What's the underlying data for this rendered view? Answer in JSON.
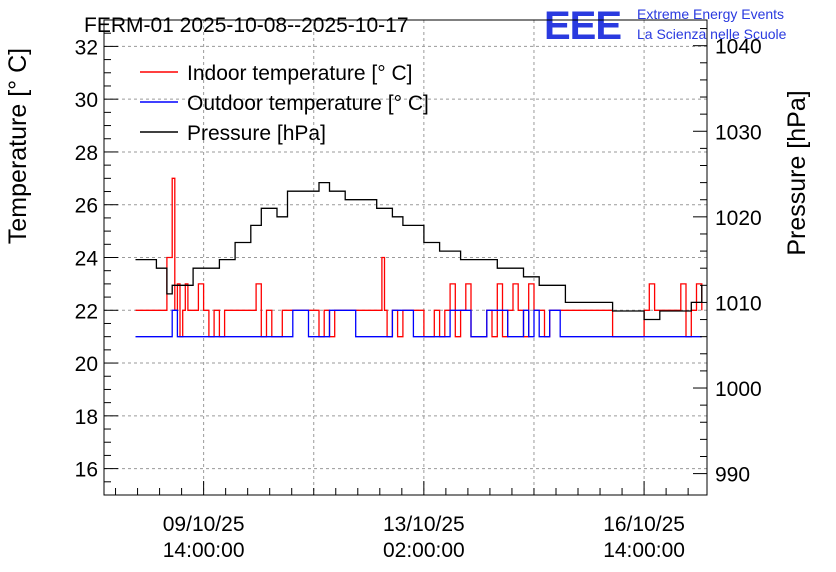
{
  "title": "FERM-01 2025-10-08--2025-10-17",
  "logo": {
    "mark": "EEE",
    "line1": "Extreme Energy Events",
    "line2": "La Scienza nelle Scuole"
  },
  "chart_data": {
    "type": "line",
    "ylabel_left": "Temperature [° C]",
    "ylabel_right": "Pressure [hPa]",
    "ylim_left": [
      15,
      33
    ],
    "ylim_right": [
      987.5,
      1043
    ],
    "yticks_left": [
      "16",
      "18",
      "20",
      "22",
      "24",
      "26",
      "28",
      "30",
      "32"
    ],
    "yticks_right": [
      "990",
      "1000",
      "1010",
      "1020",
      "1030",
      "1040"
    ],
    "xlim": [
      "2025-10-08T00:00",
      "2025-10-17T14:00"
    ],
    "xticks": [
      {
        "date": "09/10/25",
        "time": "14:00:00",
        "x": "2025-10-09T14:00"
      },
      {
        "date": "13/10/25",
        "time": "02:00:00",
        "x": "2025-10-13T02:00"
      },
      {
        "date": "16/10/25",
        "time": "14:00:00",
        "x": "2025-10-16T14:00"
      }
    ],
    "grid": true,
    "legend_position": "top-left",
    "series": [
      {
        "name": "Indoor temperature [° C]",
        "axis": "left",
        "color": "#ff0000",
        "x": [
          "2025-10-08T12:00",
          "2025-10-08T22:00",
          "2025-10-09T00:00",
          "2025-10-09T02:00",
          "2025-10-09T03:00",
          "2025-10-09T04:00",
          "2025-10-09T05:00",
          "2025-10-09T06:00",
          "2025-10-09T07:00",
          "2025-10-09T08:00",
          "2025-10-09T09:00",
          "2025-10-09T10:00",
          "2025-10-09T12:00",
          "2025-10-09T14:00",
          "2025-10-09T16:00",
          "2025-10-09T18:00",
          "2025-10-09T20:00",
          "2025-10-09T22:00",
          "2025-10-10T00:00",
          "2025-10-10T04:00",
          "2025-10-10T08:00",
          "2025-10-10T10:00",
          "2025-10-10T12:00",
          "2025-10-10T14:00",
          "2025-10-10T16:00",
          "2025-10-10T20:00",
          "2025-10-11T06:00",
          "2025-10-11T08:00",
          "2025-10-11T10:00",
          "2025-10-11T12:00",
          "2025-10-11T14:00",
          "2025-10-11T16:00",
          "2025-10-12T02:00",
          "2025-10-12T08:00",
          "2025-10-12T10:00",
          "2025-10-12T11:00",
          "2025-10-12T12:00",
          "2025-10-12T14:00",
          "2025-10-12T16:00",
          "2025-10-12T18:00",
          "2025-10-12T22:00",
          "2025-10-13T02:00",
          "2025-10-13T06:00",
          "2025-10-13T08:00",
          "2025-10-13T10:00",
          "2025-10-13T12:00",
          "2025-10-13T14:00",
          "2025-10-13T16:00",
          "2025-10-13T18:00",
          "2025-10-13T20:00",
          "2025-10-14T02:00",
          "2025-10-14T04:00",
          "2025-10-14T06:00",
          "2025-10-14T08:00",
          "2025-10-14T10:00",
          "2025-10-14T12:00",
          "2025-10-14T14:00",
          "2025-10-14T16:00",
          "2025-10-14T18:00",
          "2025-10-14T20:00",
          "2025-10-14T22:00",
          "2025-10-15T00:00",
          "2025-10-15T02:00",
          "2025-10-15T04:00",
          "2025-10-15T08:00",
          "2025-10-16T02:00",
          "2025-10-16T14:00",
          "2025-10-16T16:00",
          "2025-10-16T18:00",
          "2025-10-16T20:00",
          "2025-10-16T22:00",
          "2025-10-17T02:00",
          "2025-10-17T04:00",
          "2025-10-17T06:00",
          "2025-10-17T08:00",
          "2025-10-17T10:00",
          "2025-10-17T12:00"
        ],
        "y": [
          22,
          22,
          24,
          27,
          22,
          23,
          21,
          22,
          23,
          22,
          22,
          22,
          23,
          22,
          21,
          22,
          21,
          22,
          22,
          22,
          22,
          23,
          21,
          22,
          21,
          22,
          22,
          22,
          21,
          22,
          21,
          22,
          22,
          22,
          24,
          22,
          21,
          22,
          21,
          22,
          22,
          21,
          22,
          21,
          22,
          23,
          21,
          22,
          23,
          21,
          22,
          21,
          23,
          21,
          22,
          23,
          22,
          21,
          23,
          22,
          22,
          21,
          22,
          22,
          22,
          21,
          22,
          23,
          22,
          22,
          22,
          22,
          23,
          21,
          22,
          23,
          22
        ]
      },
      {
        "name": "Outdoor temperature [° C]",
        "axis": "left",
        "color": "#0000ff",
        "x": [
          "2025-10-08T12:00",
          "2025-10-09T00:00",
          "2025-10-09T02:00",
          "2025-10-09T04:00",
          "2025-10-09T06:00",
          "2025-10-10T20:00",
          "2025-10-11T00:00",
          "2025-10-11T06:00",
          "2025-10-11T14:00",
          "2025-10-12T00:00",
          "2025-10-12T14:00",
          "2025-10-12T22:00",
          "2025-10-13T12:00",
          "2025-10-13T20:00",
          "2025-10-14T02:00",
          "2025-10-14T10:00",
          "2025-10-14T16:00",
          "2025-10-14T18:00",
          "2025-10-14T20:00",
          "2025-10-14T22:00",
          "2025-10-15T02:00",
          "2025-10-15T06:00",
          "2025-10-16T14:00",
          "2025-10-17T12:00"
        ],
        "y": [
          21,
          21,
          22,
          21,
          21,
          21,
          22,
          21,
          22,
          21,
          22,
          21,
          22,
          21,
          22,
          21,
          22,
          21,
          22,
          21,
          22,
          21,
          21,
          21
        ]
      },
      {
        "name": "Pressure [hPa]",
        "axis": "right",
        "color": "#000000",
        "x": [
          "2025-10-08T12:00",
          "2025-10-08T20:00",
          "2025-10-09T00:00",
          "2025-10-09T02:00",
          "2025-10-09T06:00",
          "2025-10-09T10:00",
          "2025-10-09T14:00",
          "2025-10-09T20:00",
          "2025-10-10T02:00",
          "2025-10-10T08:00",
          "2025-10-10T12:00",
          "2025-10-10T18:00",
          "2025-10-10T22:00",
          "2025-10-11T06:00",
          "2025-10-11T10:00",
          "2025-10-11T14:00",
          "2025-10-11T20:00",
          "2025-10-12T02:00",
          "2025-10-12T08:00",
          "2025-10-12T14:00",
          "2025-10-12T18:00",
          "2025-10-13T02:00",
          "2025-10-13T08:00",
          "2025-10-13T16:00",
          "2025-10-13T22:00",
          "2025-10-14T06:00",
          "2025-10-14T10:00",
          "2025-10-14T16:00",
          "2025-10-14T22:00",
          "2025-10-15T04:00",
          "2025-10-15T08:00",
          "2025-10-16T02:00",
          "2025-10-16T08:00",
          "2025-10-16T14:00",
          "2025-10-16T20:00",
          "2025-10-17T02:00",
          "2025-10-17T08:00",
          "2025-10-17T12:00"
        ],
        "y": [
          1015,
          1014,
          1011,
          1012,
          1012,
          1014,
          1014,
          1015,
          1017,
          1019,
          1021,
          1020,
          1023,
          1023,
          1024,
          1023,
          1022,
          1022,
          1021,
          1020,
          1019,
          1017,
          1016,
          1015,
          1015,
          1014,
          1014,
          1013,
          1012,
          1012,
          1010,
          1009,
          1009,
          1008,
          1009,
          1009,
          1010,
          1012
        ]
      }
    ]
  }
}
